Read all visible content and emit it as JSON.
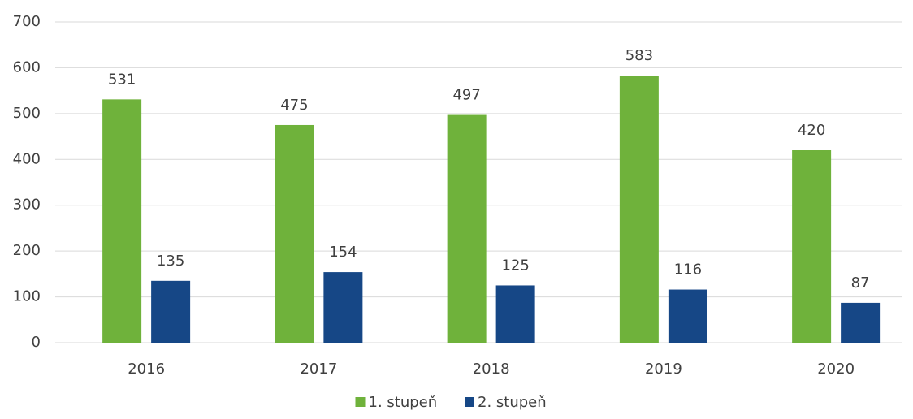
{
  "chart_data": {
    "type": "bar",
    "categories": [
      "2016",
      "2017",
      "2018",
      "2019",
      "2020"
    ],
    "series": [
      {
        "name": "1. stupeň",
        "color": "#6fb23b",
        "values": [
          531,
          475,
          497,
          583,
          420
        ]
      },
      {
        "name": "2. stupeň",
        "color": "#164786",
        "values": [
          135,
          154,
          125,
          116,
          87
        ]
      }
    ],
    "ylim": [
      0,
      700
    ],
    "yticks": [
      0,
      100,
      200,
      300,
      400,
      500,
      600,
      700
    ],
    "grid": true,
    "legend": "bottom"
  }
}
